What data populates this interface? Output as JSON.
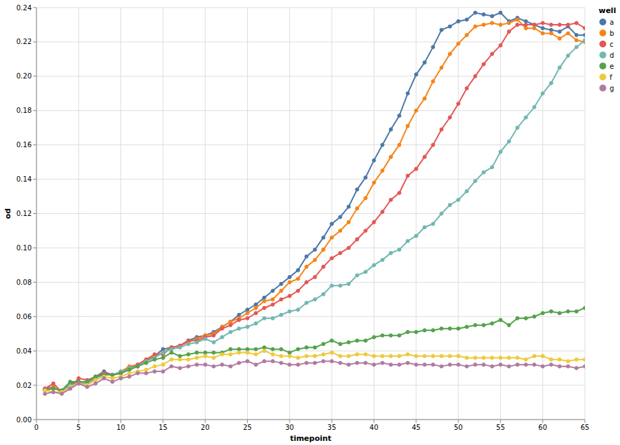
{
  "chart_data": {
    "type": "line",
    "x_label": "timepoint",
    "y_label": "od",
    "legend_title": "well",
    "legend": "top-right",
    "grid": true,
    "marker": "circle",
    "line_style": "solid",
    "x": [
      1,
      2,
      3,
      4,
      5,
      6,
      7,
      8,
      9,
      10,
      11,
      12,
      13,
      14,
      15,
      16,
      17,
      18,
      19,
      20,
      21,
      22,
      23,
      24,
      25,
      26,
      27,
      28,
      29,
      30,
      31,
      32,
      33,
      34,
      35,
      36,
      37,
      38,
      39,
      40,
      41,
      42,
      43,
      44,
      45,
      46,
      47,
      48,
      49,
      50,
      51,
      52,
      53,
      54,
      55,
      56,
      57,
      58,
      59,
      60,
      61,
      62,
      63,
      64,
      65
    ],
    "xlim": [
      0,
      65
    ],
    "xticks": [
      0,
      5,
      10,
      15,
      20,
      25,
      30,
      35,
      40,
      45,
      50,
      55,
      60,
      65
    ],
    "ylim": [
      0,
      0.24
    ],
    "yticks": [
      {
        "value": 0,
        "label": "0.00"
      },
      {
        "value": 0.02,
        "label": "0.02"
      },
      {
        "value": 0.04,
        "label": "0.04"
      },
      {
        "value": 0.06,
        "label": "0.06"
      },
      {
        "value": 0.08,
        "label": "0.08"
      },
      {
        "value": 0.1,
        "label": "0.10"
      },
      {
        "value": 0.12,
        "label": "0.12"
      },
      {
        "value": 0.14,
        "label": "0.14"
      },
      {
        "value": 0.16,
        "label": "0.16"
      },
      {
        "value": 0.18,
        "label": "0.18"
      },
      {
        "value": 0.2,
        "label": "0.20"
      },
      {
        "value": 0.22,
        "label": "0.22"
      },
      {
        "value": 0.24,
        "label": "0.24"
      }
    ],
    "series": [
      {
        "name": "a",
        "color": "#4c78a8",
        "values": [
          0.018,
          0.019,
          0.016,
          0.021,
          0.022,
          0.021,
          0.025,
          0.028,
          0.026,
          0.027,
          0.029,
          0.031,
          0.034,
          0.037,
          0.041,
          0.042,
          0.043,
          0.046,
          0.048,
          0.049,
          0.051,
          0.054,
          0.057,
          0.061,
          0.064,
          0.067,
          0.071,
          0.075,
          0.079,
          0.083,
          0.087,
          0.095,
          0.099,
          0.106,
          0.114,
          0.118,
          0.124,
          0.134,
          0.141,
          0.151,
          0.16,
          0.169,
          0.177,
          0.19,
          0.201,
          0.208,
          0.217,
          0.227,
          0.229,
          0.232,
          0.233,
          0.237,
          0.236,
          0.235,
          0.237,
          0.232,
          0.234,
          0.232,
          0.23,
          0.228,
          0.227,
          0.226,
          0.229,
          0.224,
          0.224
        ]
      },
      {
        "name": "b",
        "color": "#f58518",
        "values": [
          0.017,
          0.019,
          0.016,
          0.02,
          0.022,
          0.021,
          0.024,
          0.027,
          0.026,
          0.028,
          0.031,
          0.032,
          0.035,
          0.037,
          0.039,
          0.042,
          0.043,
          0.045,
          0.047,
          0.049,
          0.05,
          0.054,
          0.057,
          0.059,
          0.062,
          0.065,
          0.069,
          0.07,
          0.075,
          0.08,
          0.082,
          0.089,
          0.093,
          0.099,
          0.106,
          0.11,
          0.115,
          0.123,
          0.129,
          0.138,
          0.145,
          0.153,
          0.16,
          0.171,
          0.18,
          0.187,
          0.197,
          0.205,
          0.213,
          0.219,
          0.224,
          0.229,
          0.23,
          0.231,
          0.23,
          0.231,
          0.233,
          0.228,
          0.228,
          0.225,
          0.225,
          0.222,
          0.225,
          0.221,
          0.22
        ]
      },
      {
        "name": "c",
        "color": "#e45756",
        "values": [
          0.018,
          0.021,
          0.016,
          0.019,
          0.024,
          0.023,
          0.025,
          0.027,
          0.026,
          0.027,
          0.03,
          0.032,
          0.035,
          0.038,
          0.038,
          0.042,
          0.043,
          0.046,
          0.046,
          0.048,
          0.049,
          0.053,
          0.055,
          0.058,
          0.059,
          0.062,
          0.065,
          0.067,
          0.07,
          0.072,
          0.075,
          0.08,
          0.083,
          0.089,
          0.094,
          0.097,
          0.1,
          0.105,
          0.11,
          0.115,
          0.121,
          0.128,
          0.132,
          0.142,
          0.146,
          0.153,
          0.16,
          0.169,
          0.176,
          0.184,
          0.193,
          0.2,
          0.207,
          0.213,
          0.218,
          0.226,
          0.23,
          0.23,
          0.23,
          0.231,
          0.23,
          0.23,
          0.23,
          0.231,
          0.228
        ]
      },
      {
        "name": "d",
        "color": "#72b7b2",
        "values": [
          0.017,
          0.018,
          0.017,
          0.02,
          0.021,
          0.021,
          0.024,
          0.026,
          0.026,
          0.028,
          0.03,
          0.031,
          0.034,
          0.036,
          0.039,
          0.041,
          0.042,
          0.044,
          0.045,
          0.047,
          0.045,
          0.048,
          0.051,
          0.053,
          0.054,
          0.056,
          0.059,
          0.059,
          0.061,
          0.063,
          0.064,
          0.068,
          0.07,
          0.073,
          0.078,
          0.078,
          0.079,
          0.084,
          0.086,
          0.09,
          0.093,
          0.097,
          0.099,
          0.104,
          0.107,
          0.112,
          0.114,
          0.12,
          0.125,
          0.128,
          0.133,
          0.139,
          0.144,
          0.147,
          0.156,
          0.162,
          0.17,
          0.176,
          0.182,
          0.19,
          0.196,
          0.205,
          0.212,
          0.217,
          0.221
        ]
      },
      {
        "name": "e",
        "color": "#54a24b",
        "values": [
          0.017,
          0.018,
          0.017,
          0.022,
          0.022,
          0.022,
          0.025,
          0.026,
          0.026,
          0.027,
          0.029,
          0.031,
          0.033,
          0.035,
          0.036,
          0.039,
          0.037,
          0.038,
          0.039,
          0.039,
          0.039,
          0.039,
          0.041,
          0.041,
          0.041,
          0.041,
          0.042,
          0.041,
          0.041,
          0.039,
          0.041,
          0.042,
          0.042,
          0.044,
          0.046,
          0.044,
          0.045,
          0.046,
          0.046,
          0.048,
          0.049,
          0.049,
          0.049,
          0.051,
          0.051,
          0.052,
          0.052,
          0.053,
          0.053,
          0.053,
          0.054,
          0.055,
          0.055,
          0.056,
          0.058,
          0.055,
          0.059,
          0.059,
          0.06,
          0.062,
          0.063,
          0.062,
          0.063,
          0.063,
          0.065
        ]
      },
      {
        "name": "f",
        "color": "#eeca3b",
        "values": [
          0.017,
          0.016,
          0.016,
          0.019,
          0.021,
          0.02,
          0.023,
          0.025,
          0.024,
          0.025,
          0.027,
          0.028,
          0.029,
          0.031,
          0.032,
          0.035,
          0.035,
          0.035,
          0.036,
          0.037,
          0.036,
          0.038,
          0.038,
          0.039,
          0.039,
          0.038,
          0.04,
          0.038,
          0.037,
          0.037,
          0.036,
          0.037,
          0.037,
          0.038,
          0.039,
          0.037,
          0.037,
          0.038,
          0.038,
          0.037,
          0.037,
          0.037,
          0.037,
          0.038,
          0.037,
          0.037,
          0.037,
          0.037,
          0.037,
          0.037,
          0.036,
          0.036,
          0.036,
          0.036,
          0.036,
          0.036,
          0.036,
          0.035,
          0.037,
          0.037,
          0.035,
          0.035,
          0.034,
          0.035,
          0.035
        ]
      },
      {
        "name": "g",
        "color": "#b279a2",
        "values": [
          0.015,
          0.016,
          0.015,
          0.018,
          0.021,
          0.019,
          0.021,
          0.024,
          0.022,
          0.024,
          0.025,
          0.027,
          0.027,
          0.028,
          0.028,
          0.031,
          0.03,
          0.031,
          0.032,
          0.032,
          0.031,
          0.032,
          0.031,
          0.033,
          0.034,
          0.032,
          0.034,
          0.034,
          0.033,
          0.032,
          0.032,
          0.033,
          0.033,
          0.034,
          0.034,
          0.033,
          0.032,
          0.033,
          0.033,
          0.032,
          0.033,
          0.032,
          0.032,
          0.033,
          0.032,
          0.032,
          0.032,
          0.031,
          0.032,
          0.032,
          0.031,
          0.032,
          0.032,
          0.031,
          0.032,
          0.031,
          0.032,
          0.032,
          0.032,
          0.031,
          0.032,
          0.031,
          0.031,
          0.03,
          0.031
        ]
      }
    ]
  }
}
